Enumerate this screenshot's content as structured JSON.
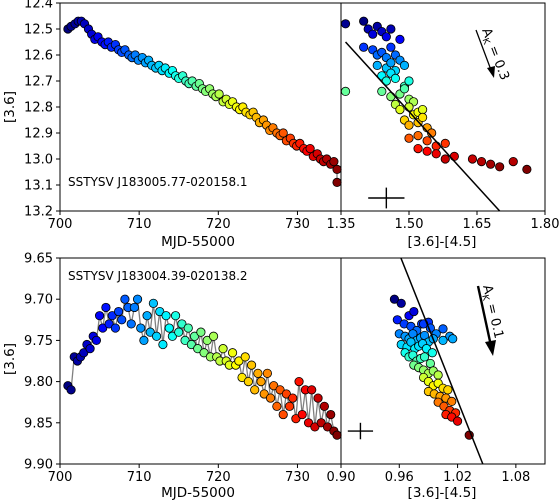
{
  "chart_data": [
    {
      "type": "line",
      "id": "top-lightcurve",
      "annotation": "SSTYSV J183005.77-020158.1",
      "xlabel": "MJD-55000",
      "ylabel": "[3.6]",
      "xlim": [
        700,
        735.5
      ],
      "ylim": [
        13.2,
        12.4
      ],
      "xticks": [
        "700",
        "710",
        "720",
        "730"
      ],
      "yticks": [
        "12.4",
        "12.5",
        "12.6",
        "12.7",
        "12.8",
        "12.9",
        "13.0",
        "13.1",
        "13.2"
      ],
      "x": [
        701.0,
        701.4,
        701.9,
        702.3,
        702.7,
        703.1,
        703.6,
        704.0,
        704.4,
        704.8,
        705.3,
        705.7,
        706.1,
        706.5,
        707.0,
        707.4,
        707.8,
        708.2,
        708.7,
        709.1,
        709.5,
        709.9,
        710.4,
        710.8,
        711.2,
        711.6,
        712.1,
        712.5,
        712.9,
        713.3,
        713.8,
        714.2,
        714.6,
        715.0,
        715.5,
        715.9,
        716.3,
        716.7,
        717.2,
        717.6,
        718.0,
        718.4,
        718.9,
        719.3,
        719.7,
        720.1,
        720.6,
        721.0,
        721.4,
        721.8,
        722.3,
        722.7,
        723.1,
        723.5,
        724.0,
        724.4,
        724.8,
        725.2,
        725.7,
        726.1,
        726.5,
        726.9,
        727.4,
        727.8,
        728.2,
        728.6,
        729.1,
        729.5,
        729.9,
        730.3,
        730.8,
        731.2,
        731.6,
        732.0,
        732.5,
        732.9,
        733.3,
        733.7,
        734.2,
        734.6,
        735.0,
        735.0
      ],
      "values": [
        12.5,
        12.49,
        12.48,
        12.47,
        12.47,
        12.48,
        12.5,
        12.52,
        12.54,
        12.53,
        12.55,
        12.56,
        12.55,
        12.57,
        12.56,
        12.58,
        12.59,
        12.58,
        12.6,
        12.61,
        12.6,
        12.62,
        12.61,
        12.63,
        12.62,
        12.64,
        12.65,
        12.64,
        12.66,
        12.65,
        12.67,
        12.66,
        12.68,
        12.69,
        12.68,
        12.7,
        12.71,
        12.7,
        12.72,
        12.71,
        12.73,
        12.74,
        12.73,
        12.75,
        12.76,
        12.75,
        12.78,
        12.77,
        12.79,
        12.78,
        12.8,
        12.81,
        12.8,
        12.82,
        12.83,
        12.82,
        12.84,
        12.86,
        12.85,
        12.87,
        12.89,
        12.88,
        12.9,
        12.91,
        12.9,
        12.93,
        12.92,
        12.94,
        12.95,
        12.94,
        12.96,
        12.97,
        12.96,
        12.99,
        12.98,
        13.0,
        13.01,
        13.0,
        13.02,
        13.01,
        13.04,
        13.09
      ]
    },
    {
      "type": "scatter",
      "id": "top-color-magnitude",
      "xlabel": "[3.6]-[4.5]",
      "xlim": [
        1.35,
        1.8
      ],
      "ylim": [
        13.2,
        12.4
      ],
      "xticks": [
        "1.35",
        "1.50",
        "1.65",
        "1.80"
      ],
      "x": [
        1.36,
        1.4,
        1.41,
        1.42,
        1.43,
        1.44,
        1.45,
        1.46,
        1.48,
        1.4,
        1.42,
        1.43,
        1.44,
        1.45,
        1.46,
        1.47,
        1.43,
        1.45,
        1.46,
        1.47,
        1.48,
        1.49,
        1.44,
        1.45,
        1.46,
        1.47,
        1.49,
        1.5,
        1.36,
        1.44,
        1.46,
        1.48,
        1.49,
        1.5,
        1.51,
        1.47,
        1.48,
        1.5,
        1.51,
        1.52,
        1.53,
        1.49,
        1.5,
        1.52,
        1.53,
        1.54,
        1.55,
        1.5,
        1.52,
        1.54,
        1.56,
        1.58,
        1.52,
        1.54,
        1.56,
        1.58,
        1.6,
        1.64,
        1.66,
        1.68,
        1.7,
        1.73,
        1.76
      ],
      "y": [
        12.48,
        12.47,
        12.5,
        12.52,
        12.49,
        12.51,
        12.53,
        12.5,
        12.54,
        12.57,
        12.58,
        12.6,
        12.59,
        12.61,
        12.57,
        12.6,
        12.64,
        12.65,
        12.63,
        12.66,
        12.62,
        12.64,
        12.68,
        12.7,
        12.67,
        12.69,
        12.72,
        12.7,
        12.74,
        12.74,
        12.76,
        12.75,
        12.73,
        12.77,
        12.78,
        12.79,
        12.81,
        12.8,
        12.83,
        12.82,
        12.81,
        12.85,
        12.87,
        12.86,
        12.84,
        12.88,
        12.9,
        12.92,
        12.91,
        12.93,
        12.95,
        12.94,
        12.96,
        12.97,
        12.98,
        13.0,
        12.99,
        13.0,
        13.01,
        13.02,
        13.03,
        13.01,
        13.04
      ],
      "fit_line": {
        "x": [
          1.36,
          1.7
        ],
        "y": [
          12.55,
          13.2
        ]
      },
      "error_bar": {
        "x": 1.45,
        "y": 13.15,
        "dx": 0.04,
        "dy": 0.04
      },
      "arrow_label": "A",
      "arrow_sub": "K",
      "arrow_value": " = 0.3"
    },
    {
      "type": "line",
      "id": "bottom-lightcurve",
      "annotation": "SSTYSV J183004.39-020138.2",
      "xlabel": "MJD-55000",
      "ylabel": "[3.6]",
      "xlim": [
        700,
        735.5
      ],
      "ylim": [
        9.9,
        9.65
      ],
      "xticks": [
        "700",
        "710",
        "720",
        "730"
      ],
      "yticks": [
        "9.65",
        "9.70",
        "9.75",
        "9.80",
        "9.85",
        "9.90"
      ],
      "x": [
        701.0,
        701.4,
        701.8,
        702.2,
        702.6,
        703.0,
        703.4,
        703.8,
        704.2,
        704.6,
        705.0,
        705.4,
        705.8,
        706.2,
        706.6,
        707.0,
        707.4,
        707.8,
        708.2,
        708.6,
        709.0,
        709.4,
        709.8,
        710.2,
        710.6,
        711.0,
        711.4,
        711.8,
        712.2,
        712.6,
        713.0,
        713.4,
        713.8,
        714.2,
        714.6,
        715.0,
        715.4,
        715.8,
        716.2,
        716.6,
        717.0,
        717.4,
        717.8,
        718.2,
        718.6,
        719.0,
        719.4,
        719.8,
        720.2,
        720.6,
        721.0,
        721.4,
        721.8,
        722.2,
        722.6,
        723.0,
        723.4,
        723.8,
        724.2,
        724.6,
        725.0,
        725.4,
        725.8,
        726.2,
        726.6,
        727.0,
        727.4,
        727.8,
        728.2,
        728.6,
        729.0,
        729.4,
        729.8,
        730.2,
        730.6,
        731.0,
        731.4,
        731.8,
        732.2,
        732.6,
        733.0,
        733.4,
        733.8,
        734.2,
        734.6,
        735.0
      ],
      "values": [
        9.805,
        9.81,
        9.77,
        9.775,
        9.77,
        9.765,
        9.755,
        9.76,
        9.745,
        9.75,
        9.72,
        9.735,
        9.71,
        9.73,
        9.72,
        9.735,
        9.715,
        9.725,
        9.7,
        9.71,
        9.73,
        9.71,
        9.7,
        9.735,
        9.75,
        9.72,
        9.74,
        9.705,
        9.745,
        9.715,
        9.755,
        9.72,
        9.735,
        9.745,
        9.72,
        9.74,
        9.73,
        9.75,
        9.735,
        9.755,
        9.745,
        9.76,
        9.74,
        9.765,
        9.75,
        9.77,
        9.745,
        9.77,
        9.775,
        9.76,
        9.775,
        9.78,
        9.765,
        9.78,
        9.775,
        9.795,
        9.77,
        9.8,
        9.78,
        9.81,
        9.79,
        9.8,
        9.815,
        9.79,
        9.82,
        9.805,
        9.83,
        9.81,
        9.84,
        9.815,
        9.83,
        9.82,
        9.845,
        9.8,
        9.84,
        9.81,
        9.85,
        9.81,
        9.855,
        9.82,
        9.85,
        9.83,
        9.855,
        9.84,
        9.86,
        9.865
      ]
    },
    {
      "type": "scatter",
      "id": "bottom-color-magnitude",
      "xlabel": "[3.6]-[4.5]",
      "xlim": [
        0.9,
        1.11
      ],
      "ylim": [
        9.9,
        9.65
      ],
      "xticks": [
        "0.90",
        "0.96",
        "1.02",
        "1.08"
      ],
      "x": [
        0.955,
        0.962,
        0.97,
        0.975,
        0.983,
        0.99,
        1.005,
        1.012,
        0.958,
        0.965,
        0.972,
        0.978,
        0.985,
        0.992,
        0.998,
        1.005,
        1.015,
        0.96,
        0.966,
        0.97,
        0.974,
        0.978,
        0.982,
        0.986,
        0.99,
        0.995,
        0.962,
        0.968,
        0.972,
        0.976,
        0.98,
        0.984,
        0.988,
        0.994,
        0.966,
        0.97,
        0.974,
        0.978,
        0.982,
        0.986,
        0.992,
        0.975,
        0.98,
        0.985,
        0.99,
        0.995,
        1.0,
        0.985,
        0.99,
        0.995,
        1.0,
        1.005,
        1.01,
        0.99,
        0.996,
        1.002,
        1.008,
        1.014,
        1.0,
        1.006,
        1.012,
        1.018,
        1.008,
        1.014,
        1.02,
        1.032
      ],
      "y": [
        9.7,
        9.705,
        9.72,
        9.715,
        9.73,
        9.728,
        9.736,
        9.745,
        9.725,
        9.73,
        9.733,
        9.738,
        9.73,
        9.735,
        9.742,
        9.75,
        9.748,
        9.742,
        9.745,
        9.748,
        9.742,
        9.75,
        9.747,
        9.744,
        9.752,
        9.748,
        9.755,
        9.758,
        9.752,
        9.76,
        9.757,
        9.754,
        9.76,
        9.765,
        9.765,
        9.77,
        9.768,
        9.775,
        9.772,
        9.77,
        9.778,
        9.78,
        9.783,
        9.786,
        9.79,
        9.787,
        9.792,
        9.795,
        9.8,
        9.805,
        9.802,
        9.808,
        9.81,
        9.812,
        9.815,
        9.818,
        9.82,
        9.824,
        9.825,
        9.83,
        9.835,
        9.838,
        9.84,
        9.843,
        9.848,
        9.865
      ],
      "fit_line": {
        "x": [
          0.96,
          1.046
        ],
        "y": [
          9.645,
          9.9
        ]
      },
      "error_bar": {
        "x": 0.92,
        "y": 9.86,
        "dx": 0.013,
        "dy": 0.01
      },
      "arrow_label": "A",
      "arrow_sub": "K",
      "arrow_value": " = 0.1"
    }
  ]
}
